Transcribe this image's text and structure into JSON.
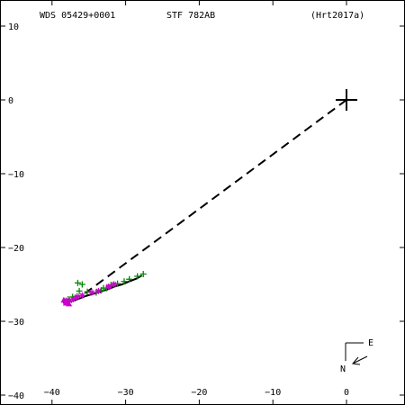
{
  "header": {
    "wds_id": "WDS 05429+0001",
    "discoverer": "STF 782AB",
    "reference": "(Hrt2017a)"
  },
  "compass": {
    "east_label": "E",
    "north_label": "N"
  },
  "chart_data": {
    "type": "scatter",
    "title": "",
    "xlabel": "",
    "ylabel": "",
    "xlim": [
      -40,
      7.5
    ],
    "ylim": [
      -40.5,
      10.5
    ],
    "x_ticks": [
      -40,
      -30,
      -20,
      -10,
      0
    ],
    "y_ticks": [
      10,
      0,
      -10,
      -20,
      -30,
      -40
    ],
    "x_tick_labels": [
      "−40",
      "−30",
      "−20",
      "−10",
      "0"
    ],
    "y_tick_labels": [
      "10",
      "0",
      "−10",
      "−20",
      "−30",
      "−40"
    ],
    "primary": {
      "x": 0,
      "y": 0
    },
    "connector": {
      "from": [
        0,
        0
      ],
      "to": [
        -35.5,
        -26.2
      ],
      "style": "dashed"
    },
    "orbit_arc": [
      [
        -38.5,
        -27.5
      ],
      [
        -37.5,
        -27.3
      ],
      [
        -36.5,
        -27.0
      ],
      [
        -35.5,
        -26.6
      ],
      [
        -34.5,
        -26.3
      ],
      [
        -33.5,
        -26.0
      ],
      [
        -32.5,
        -25.7
      ],
      [
        -31.5,
        -25.3
      ],
      [
        -30.5,
        -25.0
      ],
      [
        -29.5,
        -24.6
      ],
      [
        -28.5,
        -24.2
      ],
      [
        -27.8,
        -23.8
      ]
    ],
    "series": [
      {
        "marker": "plus",
        "color": "#008800",
        "points": [
          [
            -36.5,
            -24.8
          ],
          [
            -35.9,
            -25.0
          ],
          [
            -36.3,
            -25.9
          ],
          [
            -37.2,
            -26.7
          ],
          [
            -37.8,
            -27.0
          ],
          [
            -36.6,
            -26.6
          ],
          [
            -35.2,
            -26.0
          ],
          [
            -33.3,
            -25.8
          ],
          [
            -32.6,
            -25.5
          ],
          [
            -32.0,
            -25.1
          ],
          [
            -31.1,
            -24.9
          ],
          [
            -30.2,
            -24.6
          ],
          [
            -29.5,
            -24.3
          ],
          [
            -28.4,
            -23.9
          ],
          [
            -27.6,
            -23.6
          ],
          [
            -34.0,
            -26.1
          ],
          [
            -33.0,
            -25.5
          ],
          [
            -31.6,
            -25.0
          ]
        ]
      },
      {
        "marker": "asterisk",
        "color": "#cc00cc",
        "points": [
          [
            -38.1,
            -27.2
          ],
          [
            -37.6,
            -27.2
          ],
          [
            -37.1,
            -27.0
          ],
          [
            -36.6,
            -26.7
          ],
          [
            -35.9,
            -26.5
          ],
          [
            -34.6,
            -26.1
          ],
          [
            -33.7,
            -25.9
          ],
          [
            -32.3,
            -25.3
          ],
          [
            -31.6,
            -25.0
          ]
        ]
      },
      {
        "marker": "triangle",
        "color": "#cc00cc",
        "points": [
          [
            -38.4,
            -27.1
          ],
          [
            -38.1,
            -27.5
          ],
          [
            -37.7,
            -27.6
          ]
        ]
      }
    ]
  }
}
